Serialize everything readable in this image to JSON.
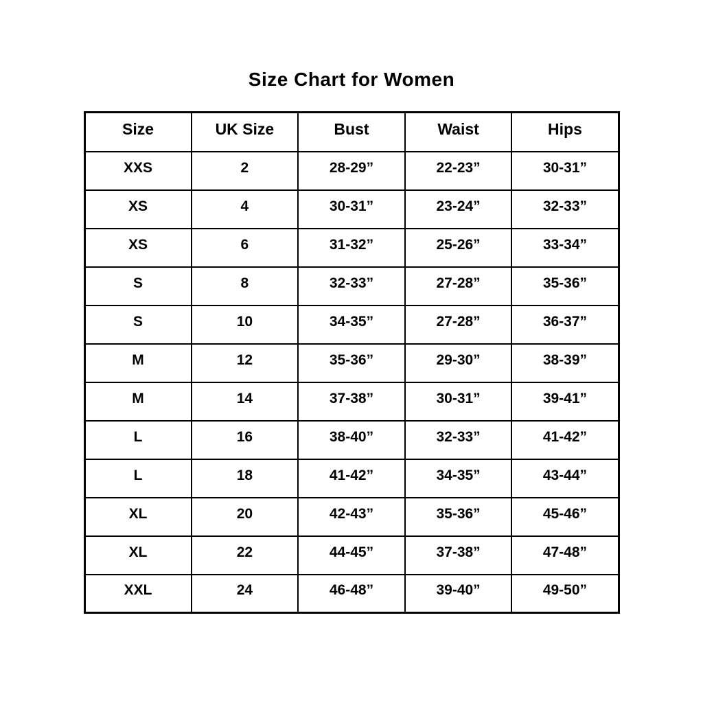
{
  "title": "Size Chart for Women",
  "chart_data": {
    "type": "table",
    "title": "Size Chart for Women",
    "columns": [
      "Size",
      "UK Size",
      "Bust",
      "Waist",
      "Hips"
    ],
    "rows": [
      [
        "XXS",
        "2",
        "28-29”",
        "22-23”",
        "30-31”"
      ],
      [
        "XS",
        "4",
        "30-31”",
        "23-24”",
        "32-33”"
      ],
      [
        "XS",
        "6",
        "31-32”",
        "25-26”",
        "33-34”"
      ],
      [
        "S",
        "8",
        "32-33”",
        "27-28”",
        "35-36”"
      ],
      [
        "S",
        "10",
        "34-35”",
        "27-28”",
        "36-37”"
      ],
      [
        "M",
        "12",
        "35-36”",
        "29-30”",
        "38-39”"
      ],
      [
        "M",
        "14",
        "37-38”",
        "30-31”",
        "39-41”"
      ],
      [
        "L",
        "16",
        "38-40”",
        "32-33”",
        "41-42”"
      ],
      [
        "L",
        "18",
        "41-42”",
        "34-35”",
        "43-44”"
      ],
      [
        "XL",
        "20",
        "42-43”",
        "35-36”",
        "45-46”"
      ],
      [
        "XL",
        "22",
        "44-45”",
        "37-38”",
        "47-48”"
      ],
      [
        "XXL",
        "24",
        "46-48”",
        "39-40”",
        "49-50”"
      ]
    ],
    "layout_hints": {
      "grid": "on",
      "text_color": "#000000",
      "border_color": "#000000",
      "background_color": "#ffffff"
    }
  }
}
